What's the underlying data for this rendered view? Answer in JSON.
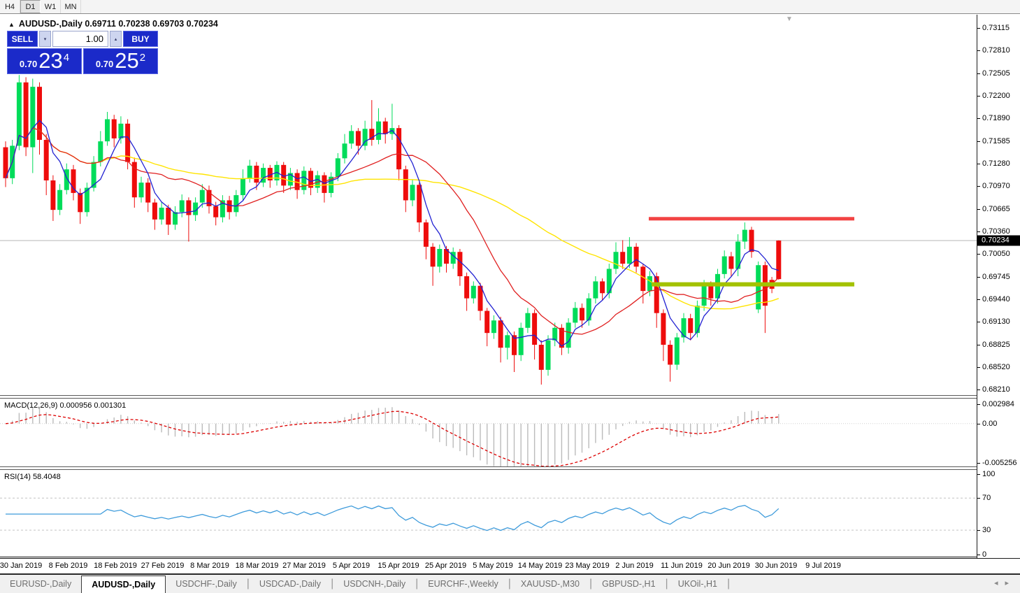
{
  "toolbar": {
    "timeframes": [
      {
        "label": "H4",
        "active": false
      },
      {
        "label": "D1",
        "active": true
      },
      {
        "label": "W1",
        "active": false
      },
      {
        "label": "MN",
        "active": false
      }
    ]
  },
  "window": {
    "title_arrow": "▲",
    "title": "AUDUSD-,Daily  0.69711 0.70238 0.69703 0.70234",
    "dropdown_icon": "▼"
  },
  "trade_panel": {
    "sell_label": "SELL",
    "buy_label": "BUY",
    "volume": "1.00",
    "spin_down": "▾",
    "spin_up": "▴",
    "sell_quote": {
      "prefix": "0.70",
      "big": "23",
      "sup": "4"
    },
    "buy_quote": {
      "prefix": "0.70",
      "big": "25",
      "sup": "2"
    }
  },
  "price_axis": {
    "ticks": [
      "0.73115",
      "0.72810",
      "0.72505",
      "0.72200",
      "0.71890",
      "0.71585",
      "0.71280",
      "0.70970",
      "0.70665",
      "0.70360",
      "0.70050",
      "0.69745",
      "0.69440",
      "0.69130",
      "0.68825",
      "0.68520",
      "0.68210"
    ],
    "current_tag": "0.70234"
  },
  "macd": {
    "label": "MACD(12,26,9) 0.000956 0.001301",
    "fast": 12,
    "slow": 26,
    "signal": 9,
    "axis_ticks": [
      "0.002984",
      "0.00",
      "-0.005256"
    ],
    "range_top": 0.002984,
    "range_bottom": -0.005256
  },
  "rsi": {
    "label": "RSI(14) 58.4048",
    "period": 14,
    "axis_ticks": [
      "100",
      "70",
      "30",
      "0"
    ],
    "levels": [
      70,
      30
    ]
  },
  "date_axis": [
    "30 Jan 2019",
    "8 Feb 2019",
    "18 Feb 2019",
    "27 Feb 2019",
    "8 Mar 2019",
    "18 Mar 2019",
    "27 Mar 2019",
    "5 Apr 2019",
    "15 Apr 2019",
    "25 Apr 2019",
    "5 May 2019",
    "14 May 2019",
    "23 May 2019",
    "2 Jun 2019",
    "11 Jun 2019",
    "20 Jun 2019",
    "30 Jun 2019",
    "9 Jul 2019"
  ],
  "tabs": [
    {
      "label": "EURUSD-,Daily",
      "active": false
    },
    {
      "label": "AUDUSD-,Daily",
      "active": true
    },
    {
      "label": "USDCHF-,Daily",
      "active": false
    },
    {
      "label": "USDCAD-,Daily",
      "active": false
    },
    {
      "label": "USDCNH-,Daily",
      "active": false
    },
    {
      "label": "EURCHF-,Weekly",
      "active": false
    },
    {
      "label": "XAUUSD-,M30",
      "active": false
    },
    {
      "label": "GBPUSD-,H1",
      "active": false
    },
    {
      "label": "UKOil-,H1",
      "active": false
    }
  ],
  "tab_scroller": {
    "left": "◂",
    "right": "▸"
  },
  "colors": {
    "candle_up": "#00dc5a",
    "candle_down": "#ee0c0c",
    "ma_fast": "#2222d2",
    "ma_mid": "#e02020",
    "ma_slow": "#ffe400",
    "macd_hist": "#bbbbbb",
    "macd_signal": "#dd0000",
    "rsi_line": "#3e9bdb",
    "level_resistance": "#f24343",
    "level_support": "#a3c200",
    "current_price_line": "#b4b4b4"
  },
  "chart_data": {
    "type": "candlestick",
    "symbol": "AUDUSD",
    "timeframe": "Daily",
    "quote": {
      "open": 0.69711,
      "high": 0.70238,
      "low": 0.69703,
      "close": 0.70234
    },
    "current_price": 0.70234,
    "levels": {
      "resistance_price": 0.7053,
      "support_price": 0.6964
    },
    "moving_averages": [
      {
        "name": "fast",
        "period": 5
      },
      {
        "name": "mid",
        "period": 15
      },
      {
        "name": "slow",
        "period": 40
      }
    ],
    "candles": [
      [
        0.715,
        0.7158,
        0.7096,
        0.7108
      ],
      [
        0.7108,
        0.716,
        0.71,
        0.7152
      ],
      [
        0.7152,
        0.7248,
        0.7146,
        0.7238
      ],
      [
        0.7238,
        0.7245,
        0.7138,
        0.715
      ],
      [
        0.715,
        0.7243,
        0.7115,
        0.7232
      ],
      [
        0.7232,
        0.7238,
        0.714,
        0.716
      ],
      [
        0.716,
        0.7168,
        0.7085,
        0.7105
      ],
      [
        0.7105,
        0.7112,
        0.705,
        0.7065
      ],
      [
        0.7065,
        0.71,
        0.7058,
        0.7092
      ],
      [
        0.7092,
        0.7128,
        0.7086,
        0.712
      ],
      [
        0.712,
        0.7126,
        0.7078,
        0.7088
      ],
      [
        0.7088,
        0.7094,
        0.7046,
        0.7062
      ],
      [
        0.7062,
        0.7102,
        0.7056,
        0.7095
      ],
      [
        0.7095,
        0.7138,
        0.709,
        0.713
      ],
      [
        0.713,
        0.7172,
        0.7124,
        0.7158
      ],
      [
        0.7158,
        0.7198,
        0.7152,
        0.7188
      ],
      [
        0.7188,
        0.7194,
        0.715,
        0.7162
      ],
      [
        0.7162,
        0.7192,
        0.7155,
        0.7182
      ],
      [
        0.7182,
        0.7188,
        0.712,
        0.713
      ],
      [
        0.713,
        0.7136,
        0.7068,
        0.7082
      ],
      [
        0.7082,
        0.711,
        0.7075,
        0.7102
      ],
      [
        0.7102,
        0.7108,
        0.7062,
        0.7075
      ],
      [
        0.7075,
        0.708,
        0.7038,
        0.7052
      ],
      [
        0.7052,
        0.7076,
        0.7045,
        0.7068
      ],
      [
        0.7068,
        0.7072,
        0.7031,
        0.7045
      ],
      [
        0.7045,
        0.707,
        0.7038,
        0.7062
      ],
      [
        0.7062,
        0.7086,
        0.7055,
        0.7078
      ],
      [
        0.7078,
        0.7082,
        0.7022,
        0.7058
      ],
      [
        0.7058,
        0.7082,
        0.705,
        0.7075
      ],
      [
        0.7075,
        0.71,
        0.7068,
        0.7092
      ],
      [
        0.7092,
        0.7098,
        0.706,
        0.707
      ],
      [
        0.707,
        0.7076,
        0.7044,
        0.7055
      ],
      [
        0.7055,
        0.7085,
        0.7048,
        0.7078
      ],
      [
        0.7078,
        0.7084,
        0.7052,
        0.7062
      ],
      [
        0.7062,
        0.7092,
        0.7056,
        0.7085
      ],
      [
        0.7085,
        0.712,
        0.7078,
        0.7108
      ],
      [
        0.7108,
        0.7133,
        0.7102,
        0.7125
      ],
      [
        0.7125,
        0.713,
        0.7092,
        0.7102
      ],
      [
        0.7102,
        0.7128,
        0.7096,
        0.7122
      ],
      [
        0.7122,
        0.7126,
        0.7095,
        0.7105
      ],
      [
        0.7105,
        0.7131,
        0.7098,
        0.7126
      ],
      [
        0.7126,
        0.713,
        0.7088,
        0.7098
      ],
      [
        0.7098,
        0.7122,
        0.7092,
        0.7115
      ],
      [
        0.7115,
        0.712,
        0.708,
        0.7092
      ],
      [
        0.7092,
        0.7124,
        0.7086,
        0.7118
      ],
      [
        0.7118,
        0.7122,
        0.7085,
        0.7095
      ],
      [
        0.7095,
        0.7118,
        0.7088,
        0.7112
      ],
      [
        0.7112,
        0.7116,
        0.7075,
        0.7088
      ],
      [
        0.7088,
        0.7116,
        0.7082,
        0.711
      ],
      [
        0.711,
        0.7142,
        0.7104,
        0.7135
      ],
      [
        0.7135,
        0.7168,
        0.7128,
        0.7155
      ],
      [
        0.7155,
        0.718,
        0.7148,
        0.7172
      ],
      [
        0.7172,
        0.7176,
        0.714,
        0.7152
      ],
      [
        0.7152,
        0.7186,
        0.7146,
        0.7175
      ],
      [
        0.7175,
        0.7214,
        0.7152,
        0.716
      ],
      [
        0.716,
        0.7203,
        0.7154,
        0.7185
      ],
      [
        0.7185,
        0.719,
        0.7155,
        0.7168
      ],
      [
        0.7168,
        0.7209,
        0.716,
        0.7176
      ],
      [
        0.7176,
        0.718,
        0.7105,
        0.712
      ],
      [
        0.712,
        0.7125,
        0.7062,
        0.7078
      ],
      [
        0.7078,
        0.7106,
        0.707,
        0.7099
      ],
      [
        0.7099,
        0.7102,
        0.7035,
        0.7048
      ],
      [
        0.7048,
        0.7052,
        0.6998,
        0.7015
      ],
      [
        0.7015,
        0.702,
        0.6962,
        0.6988
      ],
      [
        0.6988,
        0.7018,
        0.698,
        0.7012
      ],
      [
        0.7012,
        0.7016,
        0.698,
        0.6992
      ],
      [
        0.6992,
        0.7014,
        0.6985,
        0.7008
      ],
      [
        0.7008,
        0.7012,
        0.6962,
        0.6975
      ],
      [
        0.6975,
        0.698,
        0.6928,
        0.6945
      ],
      [
        0.6945,
        0.6968,
        0.6938,
        0.6962
      ],
      [
        0.6962,
        0.6966,
        0.6915,
        0.6928
      ],
      [
        0.6928,
        0.6932,
        0.688,
        0.6898
      ],
      [
        0.6898,
        0.6922,
        0.689,
        0.6915
      ],
      [
        0.6915,
        0.692,
        0.6858,
        0.6878
      ],
      [
        0.6878,
        0.69,
        0.6862,
        0.6895
      ],
      [
        0.6895,
        0.69,
        0.6845,
        0.6868
      ],
      [
        0.6868,
        0.6912,
        0.686,
        0.6905
      ],
      [
        0.6905,
        0.6932,
        0.6898,
        0.6925
      ],
      [
        0.6925,
        0.693,
        0.6862,
        0.6882
      ],
      [
        0.6882,
        0.6888,
        0.6828,
        0.6848
      ],
      [
        0.6848,
        0.6895,
        0.684,
        0.6888
      ],
      [
        0.6888,
        0.6912,
        0.688,
        0.6905
      ],
      [
        0.6905,
        0.691,
        0.6868,
        0.6878
      ],
      [
        0.6878,
        0.6918,
        0.687,
        0.6912
      ],
      [
        0.6912,
        0.694,
        0.6905,
        0.6932
      ],
      [
        0.6932,
        0.6938,
        0.6905,
        0.6915
      ],
      [
        0.6915,
        0.6952,
        0.6908,
        0.6945
      ],
      [
        0.6945,
        0.6975,
        0.6938,
        0.6968
      ],
      [
        0.6968,
        0.6972,
        0.6942,
        0.6952
      ],
      [
        0.6952,
        0.6992,
        0.6945,
        0.6985
      ],
      [
        0.6985,
        0.7021,
        0.6978,
        0.7008
      ],
      [
        0.7008,
        0.7024,
        0.6985,
        0.6992
      ],
      [
        0.6992,
        0.7028,
        0.6986,
        0.7015
      ],
      [
        0.7015,
        0.702,
        0.698,
        0.6988
      ],
      [
        0.6988,
        0.6992,
        0.6938,
        0.6955
      ],
      [
        0.6955,
        0.6982,
        0.6948,
        0.6975
      ],
      [
        0.6975,
        0.698,
        0.6905,
        0.6925
      ],
      [
        0.6925,
        0.693,
        0.686,
        0.6882
      ],
      [
        0.6882,
        0.6888,
        0.6832,
        0.6855
      ],
      [
        0.6855,
        0.6898,
        0.6848,
        0.6892
      ],
      [
        0.6892,
        0.6925,
        0.6885,
        0.6918
      ],
      [
        0.6918,
        0.6924,
        0.6888,
        0.6898
      ],
      [
        0.6898,
        0.6942,
        0.6892,
        0.6935
      ],
      [
        0.6935,
        0.697,
        0.6928,
        0.6962
      ],
      [
        0.6962,
        0.6968,
        0.6935,
        0.6945
      ],
      [
        0.6945,
        0.6985,
        0.6938,
        0.6978
      ],
      [
        0.6978,
        0.701,
        0.6972,
        0.7002
      ],
      [
        0.7002,
        0.7008,
        0.6975,
        0.6985
      ],
      [
        0.6985,
        0.7032,
        0.6975,
        0.7022
      ],
      [
        0.7022,
        0.7048,
        0.7012,
        0.7038
      ],
      [
        0.7038,
        0.7042,
        0.7,
        0.7008
      ],
      [
        0.693,
        0.6995,
        0.6925,
        0.699
      ],
      [
        0.699,
        0.6995,
        0.6898,
        0.6935
      ],
      [
        0.697,
        0.6974,
        0.6952,
        0.6958
      ],
      [
        0.69711,
        0.70238,
        0.69703,
        0.70234,
        "d"
      ]
    ]
  }
}
